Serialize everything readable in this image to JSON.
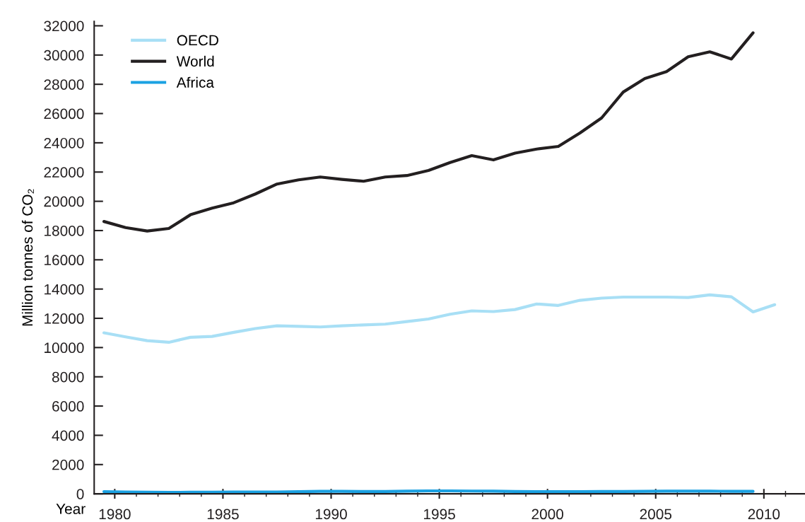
{
  "chart_data": {
    "type": "line",
    "ylabel": "Million tonnes of CO₂",
    "xlabel": "Year",
    "x": [
      1979.5,
      1980.5,
      1981.5,
      1982.5,
      1983.5,
      1984.5,
      1985.5,
      1986.5,
      1987.5,
      1988.5,
      1989.5,
      1990.5,
      1991.5,
      1992.5,
      1993.5,
      1994.5,
      1995.5,
      1996.5,
      1997.5,
      1998.5,
      1999.5,
      2000.5,
      2001.5,
      2002.5,
      2003.5,
      2004.5,
      2005.5,
      2006.5,
      2007.5,
      2008.5,
      2009.5,
      2010.5
    ],
    "series": [
      {
        "name": "OECD",
        "color": "#a8dff5",
        "values": [
          11010,
          10730,
          10470,
          10360,
          10700,
          10760,
          11040,
          11300,
          11490,
          11450,
          11410,
          11490,
          11550,
          11600,
          11780,
          11950,
          12280,
          12510,
          12460,
          12600,
          12980,
          12880,
          13230,
          13380,
          13450,
          13450,
          13450,
          13420,
          13600,
          13470,
          12440,
          12930
        ]
      },
      {
        "name": "World",
        "color": "#231f20",
        "values": [
          18620,
          18200,
          17970,
          18140,
          19080,
          19530,
          19900,
          20500,
          21180,
          21470,
          21660,
          21500,
          21370,
          21660,
          21760,
          22110,
          22650,
          23120,
          22830,
          23290,
          23570,
          23750,
          24670,
          25700,
          27470,
          28400,
          28870,
          29880,
          30220,
          29730,
          31520,
          null
        ]
      },
      {
        "name": "Africa",
        "color": "#1ba1e2",
        "values": [
          150,
          130,
          110,
          100,
          110,
          110,
          120,
          130,
          130,
          150,
          170,
          170,
          160,
          160,
          180,
          200,
          200,
          190,
          180,
          160,
          150,
          150,
          150,
          160,
          160,
          170,
          180,
          180,
          180,
          170,
          170,
          null
        ]
      }
    ],
    "xlim": [
      1979.05,
      2011.9
    ],
    "xticks": [
      1980,
      {
        "value": 1981,
        "label": null
      },
      {
        "value": 1982,
        "label": null
      },
      {
        "value": 1983,
        "label": null
      },
      {
        "value": 1984,
        "label": null
      },
      1985,
      {
        "value": 1986,
        "label": null
      },
      {
        "value": 1987,
        "label": null
      },
      {
        "value": 1988,
        "label": null
      },
      {
        "value": 1989,
        "label": null
      },
      1990,
      {
        "value": 1991,
        "label": null
      },
      {
        "value": 1992,
        "label": null
      },
      {
        "value": 1993,
        "label": null
      },
      {
        "value": 1994,
        "label": null
      },
      1995,
      {
        "value": 1996,
        "label": null
      },
      {
        "value": 1997,
        "label": null
      },
      {
        "value": 1998,
        "label": null
      },
      {
        "value": 1999,
        "label": null
      },
      2000,
      {
        "value": 2001,
        "label": null
      },
      {
        "value": 2002,
        "label": null
      },
      {
        "value": 2003,
        "label": null
      },
      {
        "value": 2004,
        "label": null
      },
      2005,
      {
        "value": 2006,
        "label": null
      },
      {
        "value": 2007,
        "label": null
      },
      {
        "value": 2008,
        "label": null
      },
      {
        "value": 2009,
        "label": null
      },
      2010,
      {
        "value": 2011,
        "label": null
      }
    ],
    "ylim": [
      0,
      32300
    ],
    "yticks": [
      0,
      2000,
      4000,
      6000,
      8000,
      10000,
      12000,
      14000,
      16000,
      18000,
      20000,
      22000,
      24000,
      26000,
      28000,
      30000,
      32000
    ],
    "grid": false,
    "legend": "top left",
    "line_style": "solid"
  }
}
